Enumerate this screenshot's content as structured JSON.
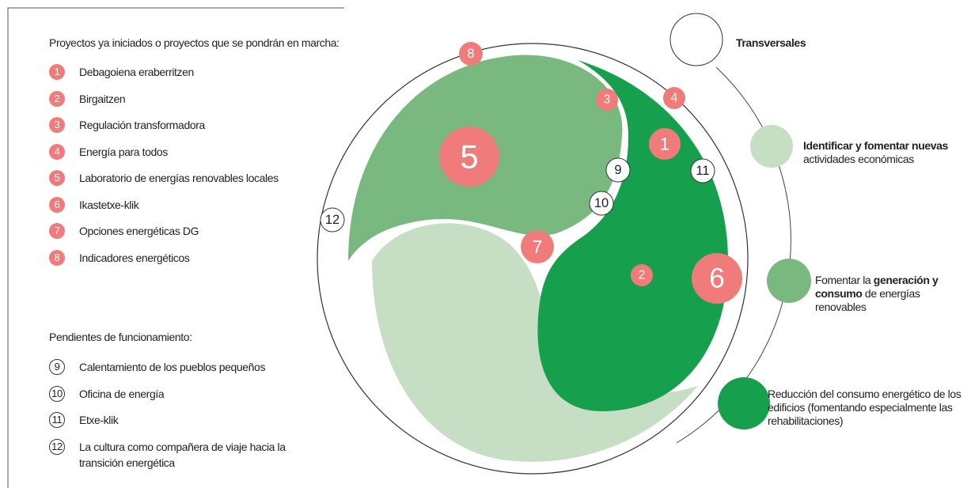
{
  "started_heading": "Proyectos ya iniciados o proyectos que se pondrán en marcha:",
  "started": [
    {
      "number": 1,
      "label": "Debagoiena eraberritzen"
    },
    {
      "number": 2,
      "label": "Birgaitzen"
    },
    {
      "number": 3,
      "label": "Regulación transformadora"
    },
    {
      "number": 4,
      "label": "Energía para todos"
    },
    {
      "number": 5,
      "label": "Laboratorio de energías renovables locales"
    },
    {
      "number": 6,
      "label": "Ikastetxe-klik"
    },
    {
      "number": 7,
      "label": "Opciones energéticas DG"
    },
    {
      "number": 8,
      "label": "Indicadores energéticos"
    }
  ],
  "pending_heading": "Pendientes de funcionamiento:",
  "pending": [
    {
      "number": 9,
      "label": "Calentamiento de los pueblos pequeños"
    },
    {
      "number": 10,
      "label": "Oficina de energía"
    },
    {
      "number": 11,
      "label": "Etxe-klik"
    },
    {
      "number": 12,
      "label": "La cultura como compañera de viaje hacia la transición energética"
    }
  ],
  "legend": [
    {
      "parts": [
        {
          "text": "Transversales",
          "bold": true
        }
      ]
    },
    {
      "parts": [
        {
          "text": "Identificar y fomentar nuevas",
          "bold": true
        },
        {
          "text": " actividades económicas",
          "bold": false
        }
      ]
    },
    {
      "parts": [
        {
          "text": "Fomentar la ",
          "bold": false
        },
        {
          "text": "generación y consumo",
          "bold": true
        },
        {
          "text": " de energías renovables",
          "bold": false
        }
      ]
    },
    {
      "parts": [
        {
          "text": "Reducción del consumo energético de los edificios (fomentando especialmente las rehabilitaciones)",
          "bold": false
        }
      ]
    }
  ],
  "diagram": {
    "badges": [
      8,
      3,
      4,
      5,
      1,
      9,
      11,
      10,
      12,
      7,
      2,
      6
    ]
  }
}
